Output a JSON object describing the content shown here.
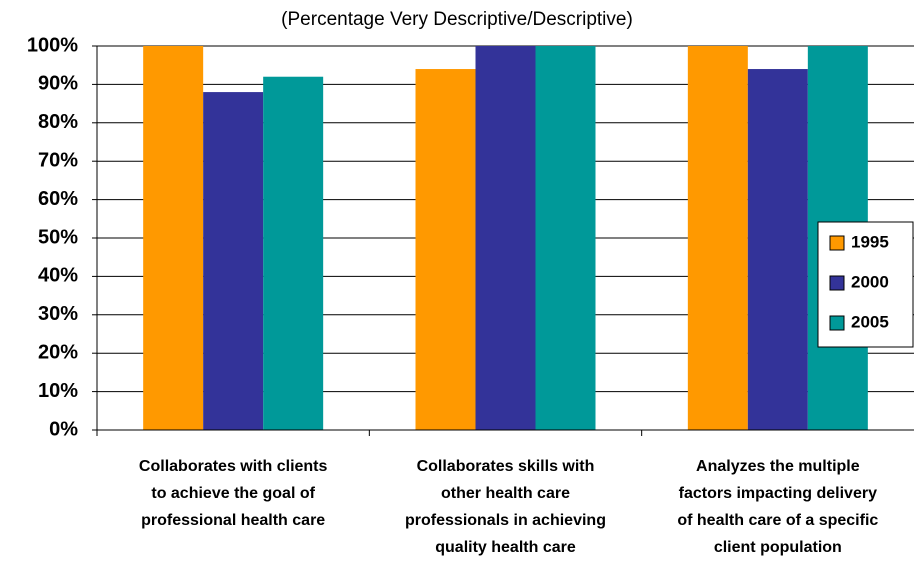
{
  "chart_data": {
    "type": "bar",
    "subtitle": "(Percentage Very Descriptive/Descriptive)",
    "categories": [
      [
        "Collaborates with clients",
        "to achieve the goal of",
        "professional health care"
      ],
      [
        "Collaborates skills with",
        "other health care",
        "professionals in achieving",
        "quality health care"
      ],
      [
        "Analyzes the multiple",
        "factors impacting delivery",
        "of health care of a specific",
        "client population"
      ]
    ],
    "series": [
      {
        "name": "1995",
        "color": "#ff9900",
        "values": [
          100,
          94,
          100
        ]
      },
      {
        "name": "2000",
        "color": "#333399",
        "values": [
          88,
          100,
          94
        ]
      },
      {
        "name": "2005",
        "color": "#009999",
        "values": [
          92,
          100,
          100
        ]
      }
    ],
    "ylim": [
      0,
      100
    ],
    "yticks": [
      {
        "value": 0,
        "label": "0%"
      },
      {
        "value": 10,
        "label": "10%"
      },
      {
        "value": 20,
        "label": "20%"
      },
      {
        "value": 30,
        "label": "30%"
      },
      {
        "value": 40,
        "label": "40%"
      },
      {
        "value": 50,
        "label": "50%"
      },
      {
        "value": 60,
        "label": "60%"
      },
      {
        "value": 70,
        "label": "70%"
      },
      {
        "value": 80,
        "label": "80%"
      },
      {
        "value": 90,
        "label": "90%"
      },
      {
        "value": 100,
        "label": "100%"
      }
    ],
    "grid": true,
    "legend": "right"
  }
}
